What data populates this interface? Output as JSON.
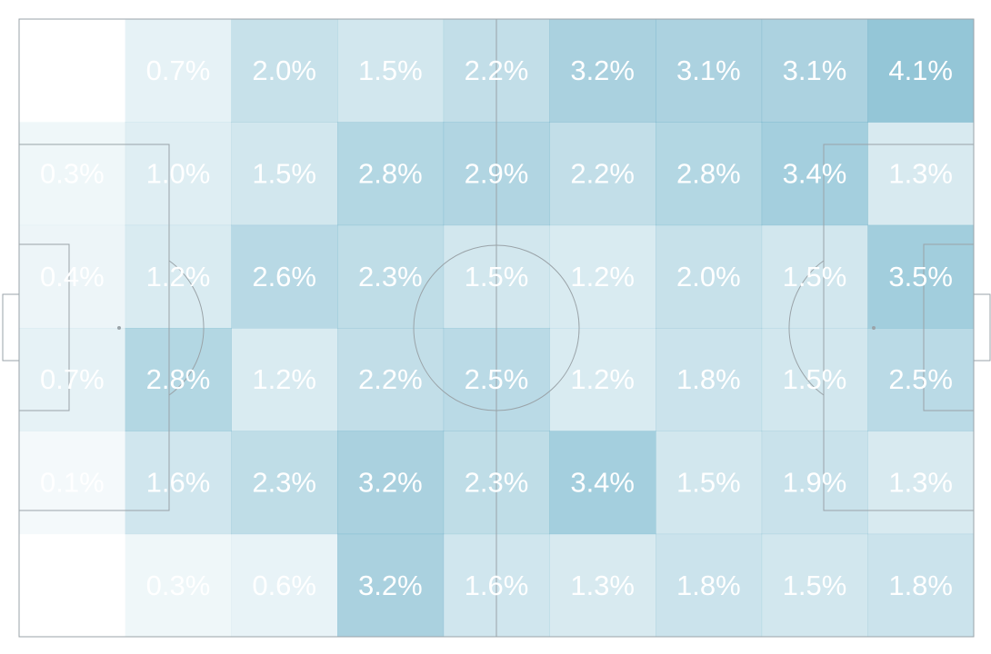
{
  "chart_data": {
    "type": "heatmap",
    "subtype": "football-pitch-zones",
    "grid": {
      "rows": 6,
      "cols": 9
    },
    "color_base": "#5aa7c2",
    "line_color": "#9aa3a8",
    "values": [
      [
        0.0,
        0.7,
        2.0,
        1.5,
        2.2,
        3.2,
        3.1,
        3.1,
        4.1
      ],
      [
        0.3,
        1.0,
        1.5,
        2.8,
        2.9,
        2.2,
        2.8,
        3.4,
        1.3
      ],
      [
        0.4,
        1.2,
        2.6,
        2.3,
        1.5,
        1.2,
        2.0,
        1.5,
        3.5
      ],
      [
        0.7,
        2.8,
        1.2,
        2.2,
        2.5,
        1.2,
        1.8,
        1.5,
        2.5
      ],
      [
        0.1,
        1.6,
        2.3,
        3.2,
        2.3,
        3.4,
        1.5,
        1.9,
        1.3
      ],
      [
        0.0,
        0.3,
        0.6,
        3.2,
        1.6,
        1.3,
        1.8,
        1.5,
        1.8
      ]
    ],
    "labels": [
      [
        "",
        "0.7%",
        "2.0%",
        "1.5%",
        "2.2%",
        "3.2%",
        "3.1%",
        "3.1%",
        "4.1%"
      ],
      [
        "0.3%",
        "1.0%",
        "1.5%",
        "2.8%",
        "2.9%",
        "2.2%",
        "2.8%",
        "3.4%",
        "1.3%"
      ],
      [
        "0.4%",
        "1.2%",
        "2.6%",
        "2.3%",
        "1.5%",
        "1.2%",
        "2.0%",
        "1.5%",
        "3.5%"
      ],
      [
        "0.7%",
        "2.8%",
        "1.2%",
        "2.2%",
        "2.5%",
        "1.2%",
        "1.8%",
        "1.5%",
        "2.5%"
      ],
      [
        "0.1%",
        "1.6%",
        "2.3%",
        "3.2%",
        "2.3%",
        "3.4%",
        "1.5%",
        "1.9%",
        "1.3%"
      ],
      [
        "",
        "0.3%",
        "0.6%",
        "3.2%",
        "1.6%",
        "1.3%",
        "1.8%",
        "1.5%",
        "1.8%"
      ]
    ],
    "vmax": 4.1,
    "legend": "none",
    "grid_lines": false
  }
}
